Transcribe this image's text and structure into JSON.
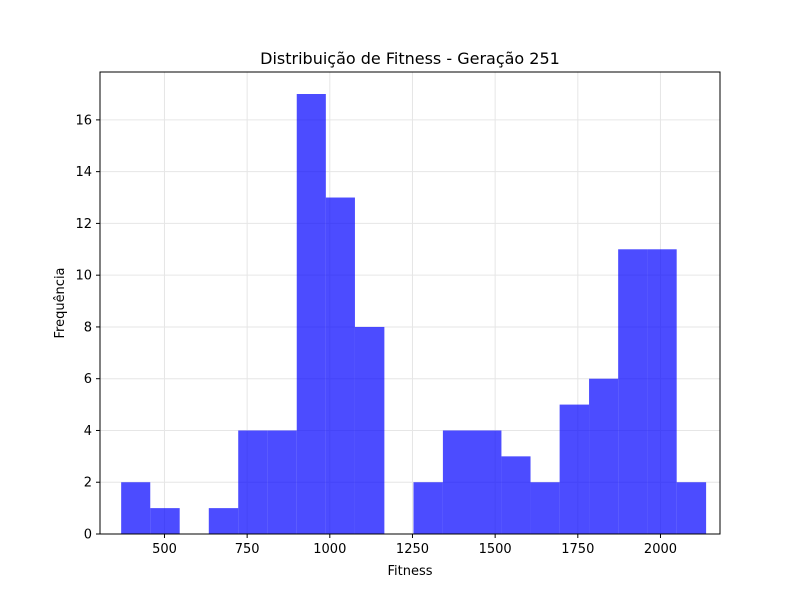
{
  "chart_data": {
    "type": "bar",
    "title": "Distribuição de Fitness - Geração 251",
    "xlabel": "Fitness",
    "ylabel": "Frequência",
    "xlim": [
      305,
      2180
    ],
    "ylim": [
      0,
      17.85
    ],
    "xticks": [
      500,
      750,
      1000,
      1250,
      1500,
      1750,
      2000
    ],
    "yticks": [
      0,
      2,
      4,
      6,
      8,
      10,
      12,
      14,
      16
    ],
    "grid": true,
    "bar_color": "#0000ff",
    "bar_opacity": 0.7,
    "bins": [
      {
        "x0": 369,
        "x1": 457,
        "count": 2
      },
      {
        "x0": 457,
        "x1": 546,
        "count": 1
      },
      {
        "x0": 546,
        "x1": 634,
        "count": 0
      },
      {
        "x0": 634,
        "x1": 723,
        "count": 1
      },
      {
        "x0": 723,
        "x1": 811,
        "count": 4
      },
      {
        "x0": 811,
        "x1": 900,
        "count": 4
      },
      {
        "x0": 900,
        "x1": 988,
        "count": 17
      },
      {
        "x0": 988,
        "x1": 1076,
        "count": 13
      },
      {
        "x0": 1076,
        "x1": 1165,
        "count": 8
      },
      {
        "x0": 1165,
        "x1": 1253,
        "count": 0
      },
      {
        "x0": 1253,
        "x1": 1342,
        "count": 2
      },
      {
        "x0": 1342,
        "x1": 1430,
        "count": 4
      },
      {
        "x0": 1430,
        "x1": 1519,
        "count": 4
      },
      {
        "x0": 1519,
        "x1": 1607,
        "count": 3
      },
      {
        "x0": 1607,
        "x1": 1695,
        "count": 2
      },
      {
        "x0": 1695,
        "x1": 1784,
        "count": 5
      },
      {
        "x0": 1784,
        "x1": 1872,
        "count": 6
      },
      {
        "x0": 1872,
        "x1": 1961,
        "count": 11
      },
      {
        "x0": 1961,
        "x1": 2049,
        "count": 11
      },
      {
        "x0": 2049,
        "x1": 2138,
        "count": 2
      }
    ]
  }
}
